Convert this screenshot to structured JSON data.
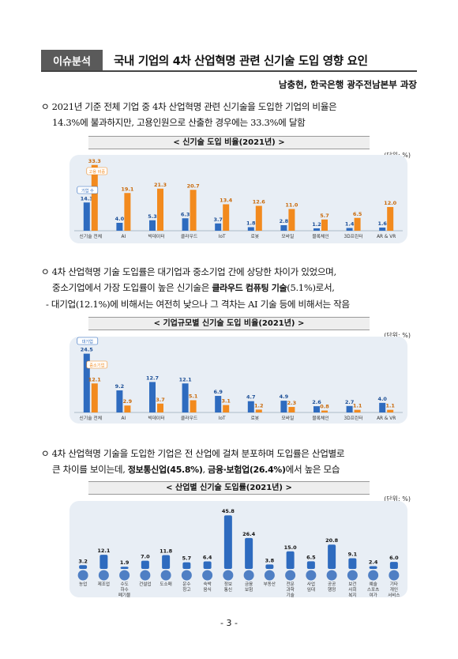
{
  "header": {
    "tag": "이슈분석",
    "title": "국내 기업의 4차 산업혁명 관련 신기술 도입 영향 요인"
  },
  "author": "남충현, 한국은행 광주전남본부 과장",
  "para1": {
    "line1": "ㅇ 2021년 기준 전체 기업 중 4차 산업혁명 관련 신기술을 도입한 기업의 비율은",
    "line2": "14.3%에 불과하지만, 고용인원으로 산출한 경우에는 33.3%에 달함"
  },
  "para2": {
    "line1": "ㅇ 4차 산업혁명 기술 도입률은 대기업과 중소기업 간에 상당한 차이가 있었으며,",
    "line2_pre": "중소기업에서 가장 도입률이 높은 신기술은 ",
    "line2_bold": "클라우드 컴퓨팅 기술",
    "line2_post": "(5.1%)로서,",
    "line3": "- 대기업(12.1%)에 비해서는 여전히 낮으나 그 격차는 AI 기술 등에 비해서는 작음"
  },
  "para3": {
    "line1": "ㅇ 4차 산업혁명 기술을 도입한 기업은 전 산업에 걸쳐 분포하며 도입률은 산업별로",
    "line2_pre": "큰 차이를 보이는데, ",
    "line2_b1": "정보통신업(45.8%)",
    "line2_mid": ", ",
    "line2_b2": "금융·보험업(26.4%)",
    "line2_post": "에서 높은 모습"
  },
  "unit_label": "(단위: %)",
  "page_number": "- 3 -",
  "colors": {
    "blue": "#2e6bbf",
    "orange": "#f28a1e",
    "panel": "#e8eef5"
  },
  "chart_data": [
    {
      "type": "bar",
      "title": "< 신기술 도입 비율(2021년) >",
      "categories": [
        "신기술 전체",
        "AI",
        "빅데이터",
        "클라우드",
        "IoT",
        "로봇",
        "모바일",
        "블록체인",
        "3D프린터",
        "AR & VR"
      ],
      "series": [
        {
          "name": "기업 수",
          "values": [
            14.3,
            4.0,
            5.3,
            6.3,
            3.7,
            1.8,
            2.8,
            1.2,
            1.4,
            1.6
          ]
        },
        {
          "name": "고용 비중",
          "values": [
            33.3,
            19.1,
            21.3,
            20.7,
            13.4,
            12.6,
            11.0,
            5.7,
            6.5,
            12.0
          ]
        }
      ],
      "ylim": [
        0,
        36
      ]
    },
    {
      "type": "bar",
      "title": "< 기업규모별 신기술 도입 비율(2021년) >",
      "categories": [
        "신기술 전체",
        "AI",
        "빅데이터",
        "클라우드",
        "IoT",
        "로봇",
        "모바일",
        "블록체인",
        "3D프린터",
        "AR & VR"
      ],
      "series": [
        {
          "name": "대기업",
          "values": [
            24.5,
            9.2,
            12.7,
            12.1,
            6.9,
            4.7,
            4.9,
            2.6,
            2.7,
            4.0
          ]
        },
        {
          "name": "중소기업",
          "values": [
            12.1,
            2.9,
            3.7,
            5.1,
            3.1,
            1.2,
            2.3,
            0.8,
            1.1,
            1.1
          ]
        }
      ],
      "ylim": [
        0,
        27
      ]
    },
    {
      "type": "bar",
      "title": "< 산업별 신기술 도입률(2021년) >",
      "categories": [
        "농업",
        "제조업",
        "수도 하수 폐기물",
        "건설업",
        "도소매",
        "운수 창고",
        "숙박 음식",
        "정보 통신",
        "금융 보험",
        "부동산",
        "전문 과학 기술",
        "사업 임대",
        "공공 행정",
        "보건 사회 복지",
        "예술 스포츠 여가",
        "기타 개인 서비스"
      ],
      "series": [
        {
          "name": "도입률",
          "values": [
            3.2,
            12.1,
            1.9,
            7.0,
            11.8,
            5.7,
            6.4,
            45.8,
            26.4,
            3.8,
            15.0,
            6.5,
            20.8,
            9.1,
            2.4,
            6.0
          ]
        }
      ],
      "ylim": [
        0,
        50
      ]
    }
  ]
}
